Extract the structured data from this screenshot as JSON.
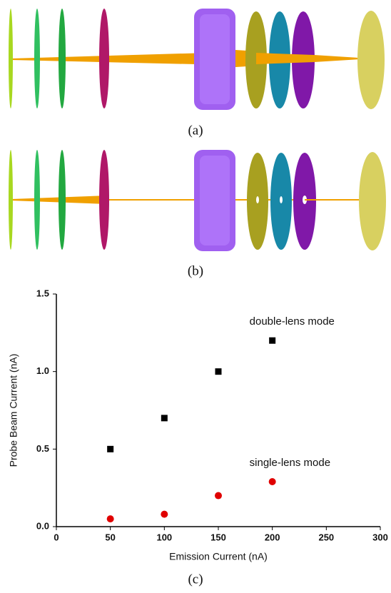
{
  "figure_labels": [
    "(a)",
    "(b)",
    "(c)"
  ],
  "chart_data": {
    "type": "scatter",
    "x_label": "Emission Current (nA)",
    "y_label": "Probe Beam Current (nA)",
    "xlim": [
      0,
      300
    ],
    "xticks": [
      0,
      50,
      100,
      150,
      200,
      250,
      300
    ],
    "ylim": [
      0,
      1.5
    ],
    "yticks": [
      {
        "value": 0,
        "label": "0.0"
      },
      {
        "value": 0.5,
        "label": "0.5"
      },
      {
        "value": 1,
        "label": "1.0"
      },
      {
        "value": 1.5,
        "label": "1.5"
      }
    ],
    "series": [
      {
        "name": "double-lens mode",
        "color": "#000000",
        "marker": "square",
        "x": [
          50,
          100,
          150,
          200
        ],
        "values": [
          0.5,
          0.7,
          1.0,
          1.2
        ]
      },
      {
        "name": "single-lens mode",
        "color": "#e00000",
        "marker": "circle",
        "x": [
          50,
          100,
          150,
          200
        ],
        "values": [
          0.05,
          0.08,
          0.2,
          0.29
        ]
      }
    ]
  }
}
